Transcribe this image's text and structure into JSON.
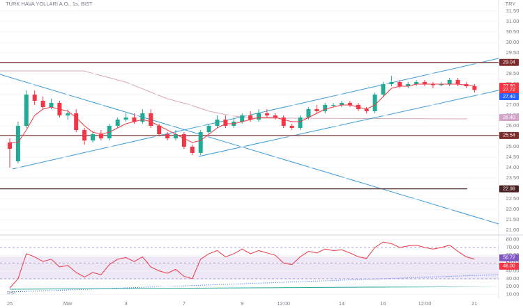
{
  "chart_data": {
    "type": "candlestick",
    "title": "TÜRK HAVA YOLLARI A.O., 1s, BIST",
    "currency": "TRY",
    "categories": [
      "25",
      null,
      null,
      null,
      null,
      null,
      null,
      "Mar",
      null,
      null,
      null,
      null,
      null,
      null,
      "3",
      null,
      null,
      null,
      null,
      null,
      null,
      "7",
      null,
      null,
      null,
      null,
      null,
      null,
      "9",
      null,
      null,
      null,
      null,
      "12:00",
      null,
      null,
      null,
      null,
      null,
      null,
      "14",
      null,
      null,
      null,
      null,
      "16",
      null,
      null,
      null,
      null,
      "12:00",
      null,
      null,
      null,
      null,
      null,
      "21"
    ],
    "open": [
      25.2,
      24.3,
      26.0,
      27.5,
      27.2,
      26.9,
      27.1,
      26.5,
      26.6,
      25.8,
      25.3,
      25.6,
      25.4,
      26.0,
      26.3,
      26.4,
      26.2,
      26.6,
      26.0,
      25.6,
      25.4,
      25.6,
      25.0,
      24.7,
      25.7,
      26.0,
      26.3,
      26.0,
      26.2,
      26.5,
      26.3,
      26.6,
      26.5,
      26.4,
      26.0,
      25.9,
      26.4,
      26.8,
      26.7,
      27.0,
      27.0,
      27.1,
      27.0,
      26.8,
      26.7,
      27.5,
      28.0,
      28.1,
      27.9,
      28.0,
      28.1,
      28.0,
      27.95,
      28.0,
      28.2,
      28.0,
      27.9
    ],
    "high": [
      25.4,
      26.2,
      27.7,
      27.7,
      27.4,
      27.3,
      27.2,
      26.8,
      26.8,
      25.9,
      25.7,
      25.8,
      26.1,
      26.4,
      26.6,
      26.6,
      26.8,
      26.8,
      26.1,
      25.7,
      25.8,
      25.7,
      25.1,
      25.8,
      26.1,
      26.5,
      26.5,
      26.4,
      26.6,
      26.7,
      26.8,
      26.8,
      26.6,
      26.5,
      26.1,
      26.5,
      26.9,
      27.0,
      27.1,
      27.1,
      27.2,
      27.2,
      27.1,
      26.9,
      27.6,
      28.1,
      28.4,
      28.2,
      28.1,
      28.2,
      28.2,
      28.1,
      28.1,
      28.3,
      28.3,
      28.1,
      28.0
    ],
    "low": [
      24.0,
      24.2,
      25.9,
      27.0,
      26.8,
      26.8,
      26.4,
      26.3,
      25.7,
      25.1,
      25.2,
      25.3,
      25.3,
      25.9,
      26.2,
      26.1,
      26.1,
      25.9,
      25.5,
      25.3,
      25.3,
      24.9,
      24.6,
      24.6,
      25.6,
      25.9,
      25.9,
      25.9,
      26.1,
      26.2,
      26.2,
      26.4,
      26.3,
      25.9,
      25.8,
      25.8,
      26.3,
      26.6,
      26.6,
      26.9,
      26.9,
      26.9,
      26.7,
      26.6,
      26.6,
      27.4,
      27.9,
      27.8,
      27.8,
      27.9,
      27.9,
      27.8,
      27.9,
      27.9,
      27.9,
      27.8,
      27.6
    ],
    "close": [
      24.9,
      26.0,
      27.5,
      27.2,
      26.9,
      27.1,
      26.5,
      26.6,
      25.8,
      25.3,
      25.6,
      25.4,
      26.0,
      26.3,
      26.4,
      26.2,
      26.6,
      26.0,
      25.6,
      25.4,
      25.6,
      25.0,
      24.7,
      25.7,
      26.0,
      26.3,
      26.0,
      26.2,
      26.5,
      26.3,
      26.6,
      26.5,
      26.4,
      26.0,
      25.9,
      26.4,
      26.8,
      26.7,
      27.0,
      27.0,
      27.1,
      27.0,
      26.8,
      26.7,
      27.5,
      28.0,
      28.1,
      27.9,
      28.0,
      28.1,
      28.0,
      27.95,
      28.0,
      28.2,
      28.0,
      27.9,
      27.72
    ],
    "up_color": "#22ab94",
    "down_color": "#f23645",
    "ma": {
      "color": "#f23645",
      "values": [
        25.2,
        25.2,
        25.8,
        26.5,
        26.8,
        26.9,
        26.8,
        26.7,
        26.4,
        26.0,
        25.7,
        25.6,
        25.7,
        25.9,
        26.1,
        26.2,
        26.3,
        26.2,
        26.0,
        25.8,
        25.6,
        25.4,
        25.2,
        25.3,
        25.6,
        25.9,
        26.1,
        26.1,
        26.2,
        26.3,
        26.4,
        26.4,
        26.4,
        26.3,
        26.2,
        26.2,
        26.4,
        26.6,
        26.8,
        26.9,
        27.0,
        27.0,
        26.9,
        26.8,
        27.0,
        27.4,
        27.8,
        27.9,
        27.9,
        28.0,
        28.0,
        28.0,
        28.0,
        28.0,
        28.0,
        27.95,
        27.9
      ]
    },
    "ylim": [
      20.77,
      32.03
    ],
    "yticks": [
      {
        "value": 21,
        "label": "21.00"
      },
      {
        "value": 21.5,
        "label": "21.50"
      },
      {
        "value": 22,
        "label": "22.00"
      },
      {
        "value": 22.5,
        "label": "22.50"
      },
      {
        "value": 23,
        "label": "23.00"
      },
      {
        "value": 23.5,
        "label": "23.50"
      },
      {
        "value": 24,
        "label": "24.00"
      },
      {
        "value": 24.5,
        "label": "24.50"
      },
      {
        "value": 25,
        "label": "25.00"
      },
      {
        "value": 25.5,
        "label": "25.50"
      },
      {
        "value": 26,
        "label": "26.00"
      },
      {
        "value": 26.5,
        "label": "26.50"
      },
      {
        "value": 27,
        "label": "27.00"
      },
      {
        "value": 27.5,
        "label": "27.50"
      },
      {
        "value": 28,
        "label": "28.00"
      },
      {
        "value": 28.5,
        "label": "28.50"
      },
      {
        "value": 29,
        "label": "29.00"
      },
      {
        "value": 29.5,
        "label": "29.50"
      },
      {
        "value": 30,
        "label": "30.00"
      },
      {
        "value": 30.5,
        "label": "30.50"
      },
      {
        "value": 31,
        "label": "31.00"
      },
      {
        "value": 31.5,
        "label": "31.50"
      }
    ],
    "price_levels": [
      {
        "value": 29.04,
        "label": "29.04",
        "color": "#7b2b2b"
      },
      {
        "value": 25.54,
        "label": "25.54",
        "color": "#7b2b2b"
      },
      {
        "value": 22.98,
        "label": "22.98",
        "color": "#4a2020"
      }
    ],
    "price_tags": [
      {
        "value": 27.9,
        "label": "27.90",
        "color": "#f23645"
      },
      {
        "value": 27.72,
        "label": "27.72",
        "color": "#f23645"
      },
      {
        "value": 27.4,
        "label": "27.40",
        "color": "#2962ff"
      },
      {
        "value": 26.4,
        "label": "26.40",
        "color": "#d4a5c8"
      }
    ],
    "rsi": {
      "name": "RSI",
      "color": "#f23645",
      "values": [
        18,
        30,
        62,
        58,
        52,
        55,
        45,
        47,
        38,
        32,
        38,
        35,
        48,
        55,
        57,
        52,
        58,
        45,
        40,
        37,
        42,
        33,
        30,
        55,
        62,
        66,
        58,
        62,
        68,
        62,
        66,
        63,
        60,
        50,
        48,
        58,
        65,
        63,
        68,
        66,
        67,
        63,
        58,
        56,
        70,
        77,
        75,
        70,
        72,
        73,
        70,
        68,
        70,
        73,
        65,
        58,
        55
      ],
      "ylim": [
        4,
        86
      ],
      "yticks": [
        {
          "value": 10,
          "label": "10.00"
        },
        {
          "value": 20,
          "label": "20.00"
        },
        {
          "value": 30,
          "label": "30.00"
        },
        {
          "value": 40,
          "label": "40.00"
        },
        {
          "value": 50,
          "label": "50.00"
        },
        {
          "value": 60,
          "label": "60.00"
        },
        {
          "value": 70,
          "label": "70.00"
        },
        {
          "value": 80,
          "label": "80.00"
        }
      ],
      "tags": [
        {
          "value": 56.72,
          "label": "56.72",
          "color": "#7e57c2"
        },
        {
          "value": 46,
          "label": "46.00",
          "color": "#f23645"
        }
      ]
    }
  }
}
